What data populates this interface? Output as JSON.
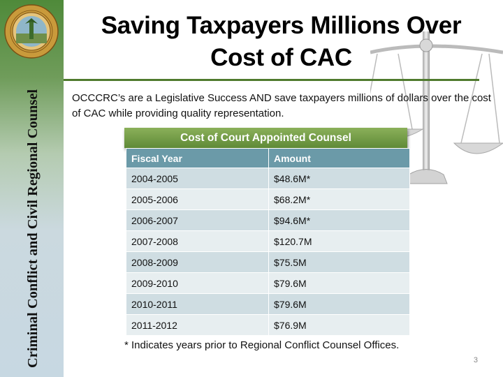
{
  "slide": {
    "title_line1": "Saving Taxpayers Millions Over",
    "title_line2": "Cost of CAC",
    "sidebar_text": "Criminal Conflict and Civil Regional Counsel",
    "seal_text": "GREAT SEAL OF THE STATE OF FLORIDA",
    "seal_motto": "IN GOD WE TRUST",
    "intro": "OCCCRC’s are a Legislative Success AND save taxpayers millions of dollars over the cost of CAC while providing quality representation.",
    "table_title": "Cost of Court Appointed Counsel",
    "columns": [
      "Fiscal Year",
      "Amount"
    ],
    "rows": [
      [
        "2004-2005",
        "$48.6M*"
      ],
      [
        "2005-2006",
        "$68.2M*"
      ],
      [
        "2006-2007",
        "$94.6M*"
      ],
      [
        "2007-2008",
        "$120.7M"
      ],
      [
        "2008-2009",
        "$75.5M"
      ],
      [
        "2009-2010",
        "$79.6M"
      ],
      [
        "2010-2011",
        "$79.6M"
      ],
      [
        "2011-2012",
        "$76.9M"
      ]
    ],
    "footnote": "* Indicates years prior to Regional Conflict Counsel Offices.",
    "page_number": "3"
  },
  "colors": {
    "accent_green": "#5f8a37",
    "table_header_blue": "#6b9aa8",
    "row_dark": "#cfdde2",
    "row_light": "#e7eef0"
  },
  "icons": [
    "florida-seal-icon",
    "scales-of-justice-icon"
  ]
}
